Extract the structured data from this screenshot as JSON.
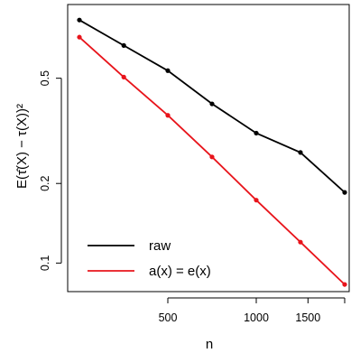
{
  "chart_data": {
    "type": "line",
    "x_scale": "log",
    "y_scale": "log",
    "xlim": [
      200,
      2000
    ],
    "ylim": [
      0.078,
      0.95
    ],
    "x_ticks": [
      500,
      1000,
      1500
    ],
    "x_tick_labels": [
      "500",
      "1000",
      "1500"
    ],
    "y_ticks": [
      0.1,
      0.2,
      0.5
    ],
    "y_tick_labels": [
      "0.1",
      "0.2",
      "0.5"
    ],
    "xlabel": "n",
    "ylabel": "E(τ̂(X) − τ(X))²",
    "grid": false,
    "legend_position": "bottom-left",
    "series": [
      {
        "name": "raw",
        "color": "#000000",
        "x": [
          250,
          354,
          500,
          707,
          1000,
          1414,
          2000
        ],
        "y": [
          0.83,
          0.665,
          0.534,
          0.4,
          0.31,
          0.262,
          0.185
        ]
      },
      {
        "name": "a(x) = e(x)",
        "color": "#e8141b",
        "x": [
          250,
          354,
          500,
          707,
          1000,
          1414,
          2000
        ],
        "y": [
          0.715,
          0.505,
          0.362,
          0.252,
          0.173,
          0.12,
          0.083
        ]
      }
    ]
  }
}
